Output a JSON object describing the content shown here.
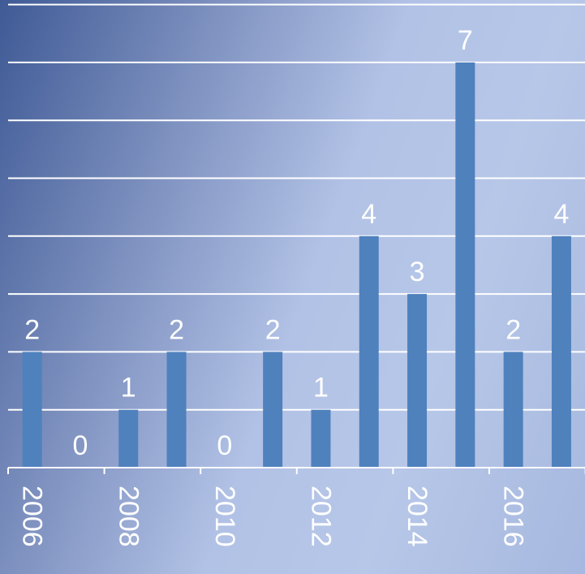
{
  "chart_data": {
    "type": "bar",
    "x": [
      2006,
      2007,
      2008,
      2009,
      2010,
      2011,
      2012,
      2013,
      2014,
      2015,
      2016,
      2017
    ],
    "values": [
      2,
      0,
      1,
      2,
      0,
      2,
      1,
      4,
      3,
      7,
      2,
      4
    ],
    "tick_labels": [
      "2006",
      "2008",
      "2010",
      "2012",
      "2014",
      "2016"
    ],
    "ylim": [
      0,
      8
    ],
    "grid": true,
    "legend": "none",
    "title": "",
    "xlabel": "",
    "ylabel": "",
    "colors": {
      "bar": "#4f81bd",
      "grid": "#ffffff",
      "labels": "#ffffff",
      "background_dark": "#3f5a96",
      "background_light": "#b7c7e8"
    }
  }
}
